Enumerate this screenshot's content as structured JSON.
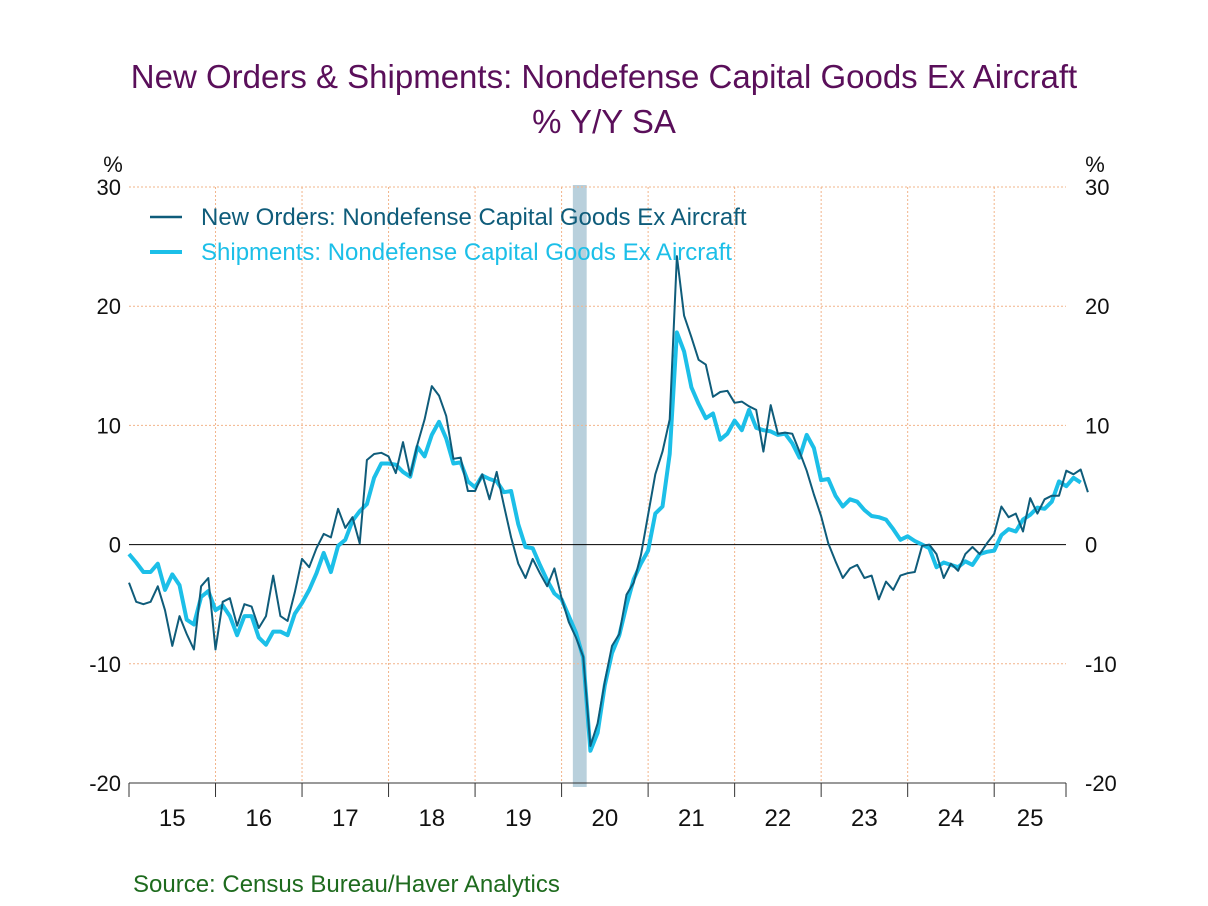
{
  "title": "New Orders & Shipments: Nondefense Capital Goods Ex Aircraft",
  "subtitle": "% Y/Y   SA",
  "source": "Source:  Census Bureau/Haver Analytics",
  "colors": {
    "title": "#5a0f5a",
    "orders": "#0f5c7a",
    "shipments": "#1cbfe8",
    "recession": "#b9d0dc",
    "grid": "#f2b48a",
    "source": "#1e6b1e"
  },
  "chart_data": {
    "type": "line",
    "y_unit_left": "%",
    "y_unit_right": "%",
    "ylim": [
      -20,
      30
    ],
    "yticks": [
      30,
      20,
      10,
      0,
      -10,
      -20
    ],
    "xlim": [
      2015.0,
      2025.83
    ],
    "xtick_labels": [
      "15",
      "16",
      "17",
      "18",
      "19",
      "20",
      "21",
      "22",
      "23",
      "24",
      "25"
    ],
    "grid": true,
    "legend_position": "top-left",
    "recession_band": [
      2020.13,
      2020.29
    ],
    "series": [
      {
        "name": "New Orders: Nondefense Capital Goods Ex Aircraft",
        "color": "#0f5c7a",
        "start": 2015.0,
        "step": 0.08333,
        "values": [
          -3.2,
          -4.8,
          -5,
          -4.8,
          -3.5,
          -5.5,
          -8.5,
          -6,
          -7.5,
          -8.8,
          -3.5,
          -2.8,
          -8.8,
          -4.8,
          -4.5,
          -6.8,
          -5,
          -5.2,
          -7,
          -6,
          -2.6,
          -6,
          -6.4,
          -4,
          -1.2,
          -1.9,
          -0.3,
          0.9,
          0.6,
          3,
          1.4,
          2.3,
          0.1,
          7.1,
          7.6,
          7.7,
          7.4,
          6,
          8.6,
          5.8,
          8.4,
          10.5,
          13.3,
          12.5,
          10.8,
          7.2,
          7.3,
          4.5,
          4.5,
          5.9,
          3.8,
          6.1,
          3.3,
          0.6,
          -1.6,
          -2.8,
          -1.2,
          -2.4,
          -3.5,
          -2,
          -4.5,
          -6.5,
          -7.8,
          -9.4,
          -16.9,
          -15,
          -11.5,
          -8.5,
          -7.5,
          -4.2,
          -3.2,
          -0.9,
          2.5,
          5.9,
          7.8,
          10.5,
          24.2,
          19.2,
          17.4,
          15.5,
          15.1,
          12.4,
          12.8,
          12.9,
          11.9,
          12,
          11.6,
          11.3,
          7.8,
          11.7,
          9.3,
          9.4,
          9.3,
          7.8,
          6.2,
          4.2,
          2.4,
          0.1,
          -1.4,
          -2.8,
          -2,
          -1.7,
          -2.8,
          -2.6,
          -4.6,
          -3.1,
          -3.8,
          -2.6,
          -2.4,
          -2.3,
          -0.1,
          0,
          -0.8,
          -2.8,
          -1.6,
          -2.2,
          -0.8,
          -0.2,
          -0.8,
          0.1,
          0.9,
          3.2,
          2.3,
          2.6,
          1.1,
          3.9,
          2.6,
          3.8,
          4.1,
          4.1,
          6.2,
          5.9,
          6.3,
          4.4
        ]
      },
      {
        "name": "Shipments: Nondefense Capital Goods Ex Aircraft",
        "color": "#1cbfe8",
        "start": 2015.0,
        "step": 0.08333,
        "values": [
          -0.8,
          -1.5,
          -2.3,
          -2.3,
          -1.6,
          -3.8,
          -2.5,
          -3.4,
          -6.3,
          -6.7,
          -4.4,
          -3.9,
          -5.5,
          -5.1,
          -6,
          -7.6,
          -6,
          -6,
          -7.8,
          -8.4,
          -7.3,
          -7.3,
          -7.6,
          -5.8,
          -4.9,
          -3.8,
          -2.4,
          -0.7,
          -2.3,
          -0.1,
          0.4,
          2,
          2.8,
          3.4,
          5.6,
          6.8,
          6.8,
          6.7,
          6.1,
          5.7,
          8.2,
          7.4,
          9.2,
          10.3,
          8.9,
          6.8,
          6.9,
          5.3,
          4.8,
          5.8,
          5.5,
          5.3,
          4.4,
          4.5,
          1.7,
          -0.2,
          -0.3,
          -1.7,
          -3,
          -4.1,
          -4.6,
          -6,
          -7.4,
          -9.5,
          -17.3,
          -15.8,
          -11.8,
          -9.1,
          -7.6,
          -5.1,
          -2.9,
          -1.6,
          -0.5,
          2.6,
          3.2,
          7.6,
          17.8,
          16.2,
          13.2,
          11.8,
          10.6,
          11,
          8.8,
          9.3,
          10.4,
          9.6,
          11.3,
          9.8,
          9.6,
          9.5,
          9.2,
          9.3,
          8.5,
          7.3,
          9.2,
          8.1,
          5.4,
          5.5,
          4.1,
          3.2,
          3.8,
          3.6,
          2.9,
          2.4,
          2.3,
          2.1,
          1.3,
          0.4,
          0.7,
          0.3,
          0,
          -0.3,
          -1.9,
          -1.5,
          -1.7,
          -1.9,
          -1.4,
          -1.7,
          -0.8,
          -0.6,
          -0.5,
          0.8,
          1.3,
          1.1,
          2.1,
          2.5,
          3.1,
          3,
          3.6,
          5.3,
          4.9,
          5.6,
          5.2
        ]
      }
    ]
  }
}
